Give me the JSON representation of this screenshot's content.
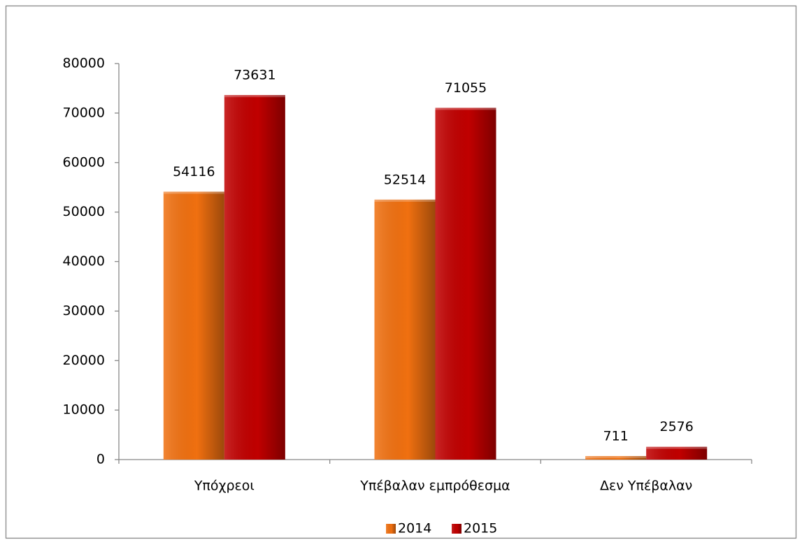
{
  "chart_data": {
    "type": "bar",
    "categories": [
      "Υπόχρεοι",
      "Υπέβαλαν εμπρόθεσμα",
      "Δεν Υπέβαλαν"
    ],
    "series": [
      {
        "name": "2014",
        "color": "#f07010",
        "values": [
          54116,
          52514,
          711
        ]
      },
      {
        "name": "2015",
        "color": "#c00000",
        "values": [
          73631,
          71055,
          2576
        ]
      }
    ],
    "ylim": [
      0,
      80000
    ],
    "yticks": [
      0,
      10000,
      20000,
      30000,
      40000,
      50000,
      60000,
      70000,
      80000
    ],
    "grid": false,
    "legend": "bottom",
    "data_labels": true
  }
}
